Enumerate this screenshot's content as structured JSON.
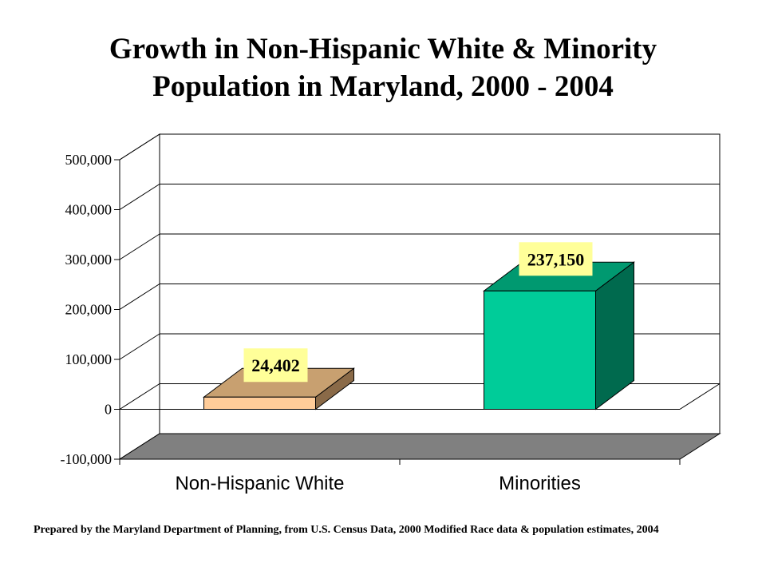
{
  "title_lines": [
    "Growth in Non-Hispanic White & Minority",
    "Population in Maryland, 2000 - 2004"
  ],
  "source_note": "Prepared by the Maryland Department of Planning, from U.S. Census Data,  2000 Modified Race data & population estimates, 2004",
  "colors": {
    "bar1_front": "#ffcc99",
    "bar1_top": "#c8a070",
    "bar1_side": "#8a6a48",
    "bar2_front": "#00cc99",
    "bar2_top": "#009970",
    "bar2_side": "#006a4e",
    "floor": "#808080",
    "label_bg": "#ffff99"
  },
  "chart_data": {
    "type": "bar",
    "title": "Growth in Non-Hispanic White & Minority Population in Maryland, 2000 - 2004",
    "categories": [
      "Non-Hispanic White",
      "Minorities"
    ],
    "values": [
      24402,
      237150
    ],
    "data_labels": [
      "24,402",
      "237,150"
    ],
    "ylim": [
      -100000,
      500000
    ],
    "yticks": [
      -100000,
      0,
      100000,
      200000,
      300000,
      400000,
      500000
    ],
    "ytick_labels": [
      "-100,000",
      "0",
      "100,000",
      "200,000",
      "300,000",
      "400,000",
      "500,000"
    ],
    "grid": true,
    "style": "3d"
  }
}
